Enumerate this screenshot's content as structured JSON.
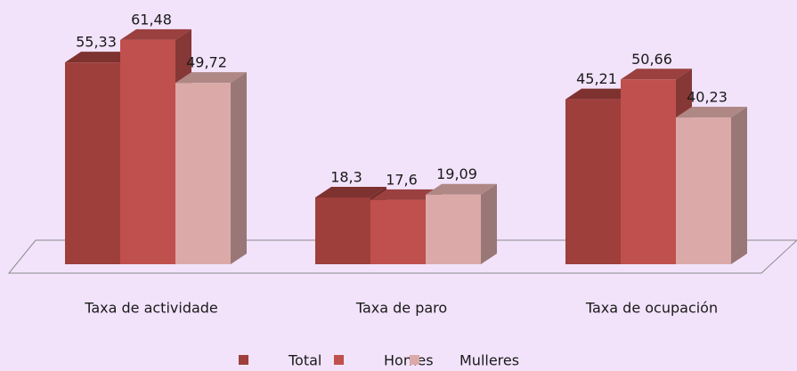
{
  "chart_data": {
    "type": "bar3d",
    "categories": [
      "Taxa de actividade",
      "Taxa de paro",
      "Taxa de ocupación"
    ],
    "series": [
      {
        "name": "Total",
        "color": "#9e3f3b",
        "values": [
          55.33,
          18.3,
          45.21
        ],
        "value_labels": [
          "55,33",
          "18,3",
          "45,21"
        ]
      },
      {
        "name": "Homes",
        "color": "#c0504d",
        "values": [
          61.48,
          17.6,
          50.66
        ],
        "value_labels": [
          "61,48",
          "17,6",
          "50,66"
        ]
      },
      {
        "name": "Mulleres",
        "color": "#dbaaa8",
        "values": [
          49.72,
          19.09,
          40.23
        ],
        "value_labels": [
          "49,72",
          "19,09",
          "40,23"
        ]
      }
    ],
    "legend": "bottom"
  }
}
